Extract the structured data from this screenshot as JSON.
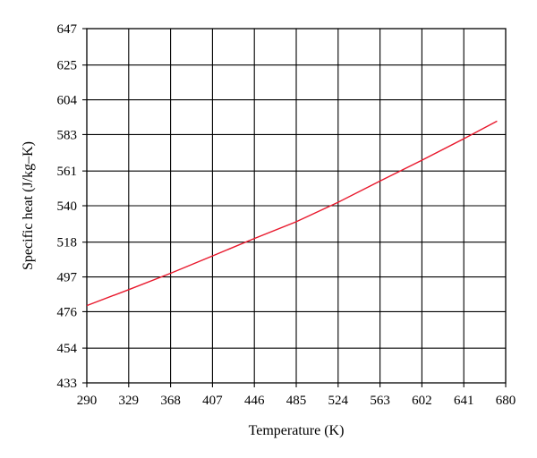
{
  "chart_data": {
    "type": "line",
    "title": "",
    "xlabel": "Temperature (K)",
    "ylabel": "Specific heat (J/kg–K)",
    "xlim": [
      290,
      680
    ],
    "ylim": [
      433,
      647
    ],
    "x_ticks": [
      290,
      329,
      368,
      407,
      446,
      485,
      524,
      563,
      602,
      641,
      680
    ],
    "y_ticks": [
      433,
      454,
      476,
      497,
      518,
      540,
      561,
      583,
      604,
      625,
      647
    ],
    "grid": true,
    "legend": "none",
    "series": [
      {
        "color": "#e8182c",
        "x": [
          290,
          329,
          368,
          407,
          446,
          485,
          524,
          563,
          602,
          641,
          672
        ],
        "y": [
          479.7,
          489.3,
          499.2,
          509.7,
          520.2,
          530.3,
          542.1,
          554.9,
          567.5,
          580.5,
          591.1
        ]
      }
    ]
  }
}
